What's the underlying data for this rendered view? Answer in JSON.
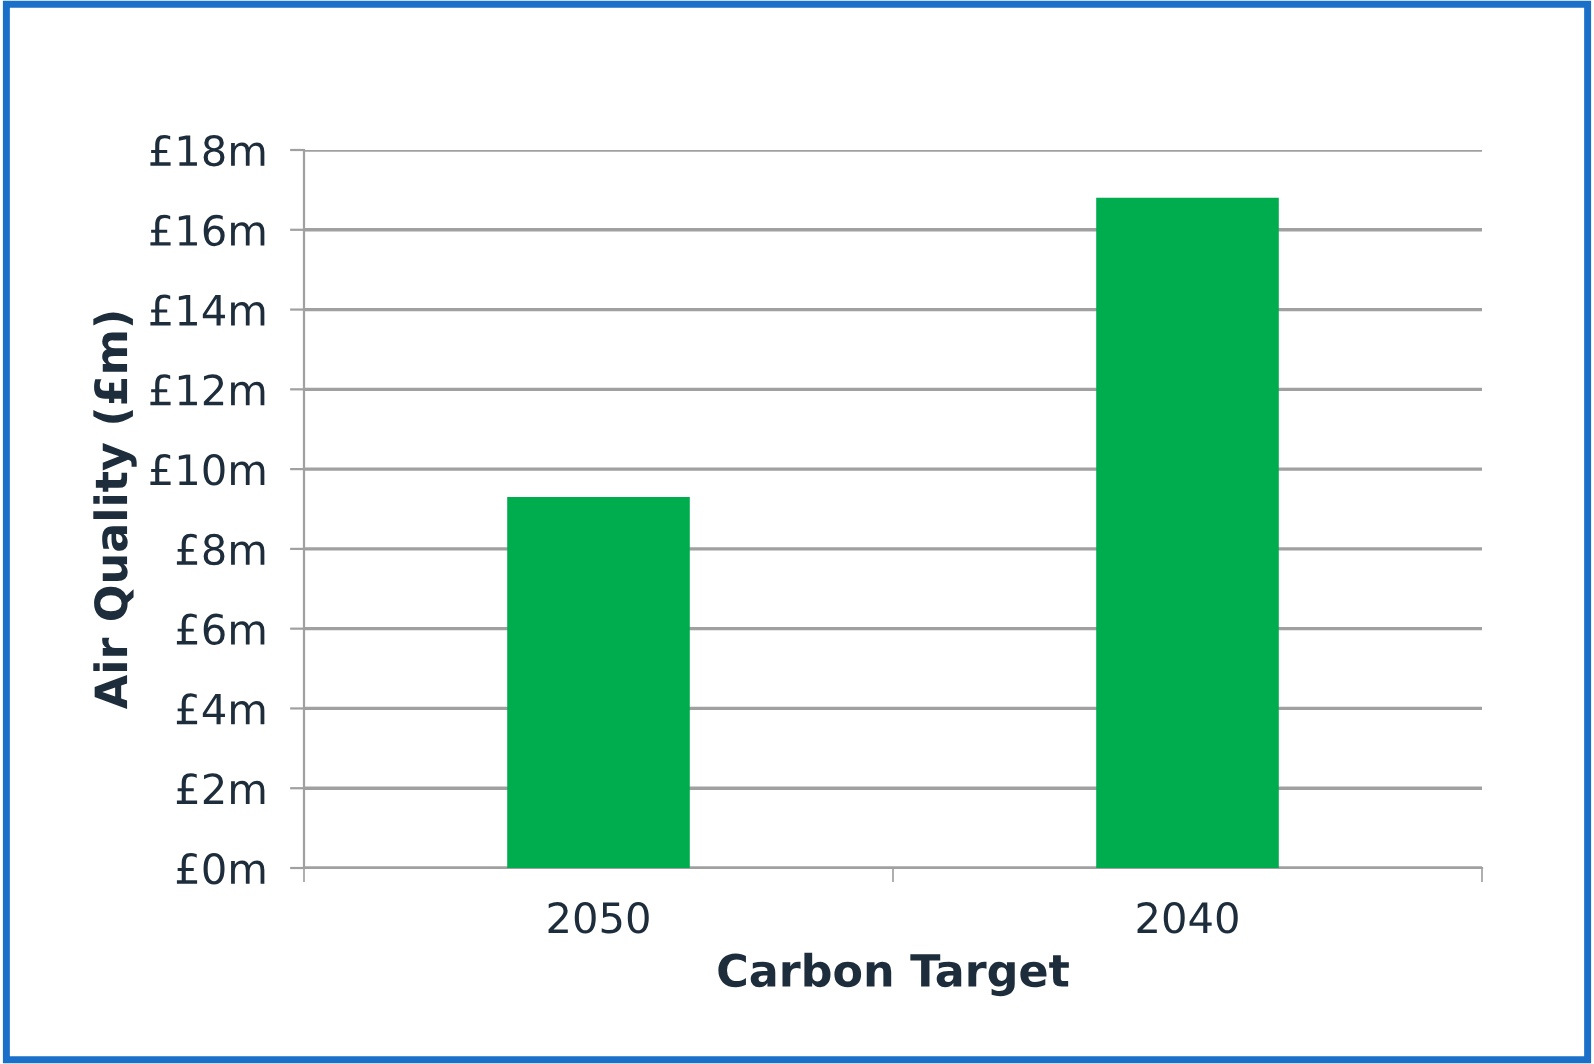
{
  "chart_data": {
    "type": "bar",
    "xlabel": "Carbon Target",
    "ylabel": "Air Quality (£m)",
    "categories": [
      "2050",
      "2040"
    ],
    "values": [
      9.3,
      16.8
    ],
    "color": "#00ad4e",
    "ylim": [
      0,
      18
    ],
    "yticks": [
      {
        "value": 0,
        "label": "£0m"
      },
      {
        "value": 2,
        "label": "£2m"
      },
      {
        "value": 4,
        "label": "£4m"
      },
      {
        "value": 6,
        "label": "£6m"
      },
      {
        "value": 8,
        "label": "£8m"
      },
      {
        "value": 10,
        "label": "£10m"
      },
      {
        "value": 12,
        "label": "£12m"
      },
      {
        "value": 14,
        "label": "£14m"
      },
      {
        "value": 16,
        "label": "£16m"
      },
      {
        "value": 18,
        "label": "£18m"
      }
    ],
    "grid": "y",
    "legend": false
  }
}
